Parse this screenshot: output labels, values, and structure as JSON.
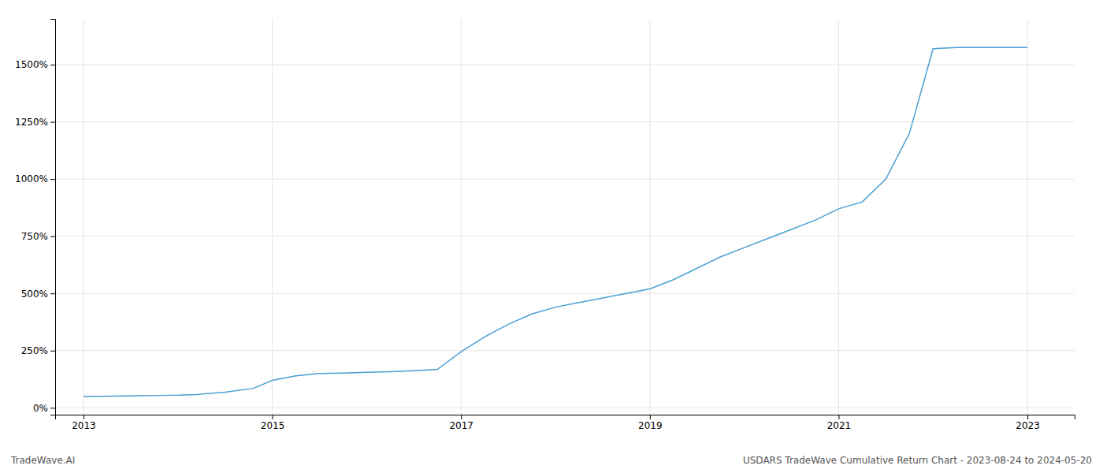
{
  "chart_data": {
    "type": "line",
    "annotations": [
      "TradeWave.AI",
      "USDARS TradeWave Cumulative Return Chart - 2023-08-24 to 2024-05-20"
    ],
    "color": "#4a9fd4",
    "grid": true,
    "x": [
      2013.0,
      2013.2,
      2013.4,
      2013.6,
      2013.8,
      2014.0,
      2014.2,
      2014.5,
      2014.8,
      2015.0,
      2015.25,
      2015.5,
      2015.75,
      2016.0,
      2016.25,
      2016.5,
      2016.75,
      2017.0,
      2017.25,
      2017.5,
      2017.75,
      2018.0,
      2018.25,
      2018.5,
      2018.75,
      2019.0,
      2019.25,
      2019.5,
      2019.75,
      2020.0,
      2020.25,
      2020.5,
      2020.75,
      2021.0,
      2021.25,
      2021.5,
      2021.75,
      2022.0,
      2022.25,
      2022.5,
      2022.7,
      2022.85,
      2023.0
    ],
    "values": [
      50,
      50,
      52,
      53,
      54,
      55,
      58,
      68,
      85,
      120,
      140,
      150,
      152,
      155,
      158,
      162,
      168,
      245,
      310,
      365,
      410,
      440,
      460,
      480,
      500,
      520,
      560,
      610,
      660,
      700,
      740,
      780,
      820,
      870,
      900,
      1000,
      1200,
      1570,
      1575,
      1575,
      1575,
      1575,
      1575
    ],
    "xlim": [
      2012.7,
      2023.5
    ],
    "xticks": [
      2013,
      2015,
      2017,
      2019,
      2021,
      2023
    ],
    "ylim": [
      -30,
      1700
    ],
    "yticks": [
      {
        "value": 0,
        "label": "0%"
      },
      {
        "value": 250,
        "label": "250%"
      },
      {
        "value": 500,
        "label": "500%"
      },
      {
        "value": 750,
        "label": "750%"
      },
      {
        "value": 1000,
        "label": "1000%"
      },
      {
        "value": 1250,
        "label": "1250%"
      },
      {
        "value": 1500,
        "label": "1500%"
      }
    ]
  }
}
